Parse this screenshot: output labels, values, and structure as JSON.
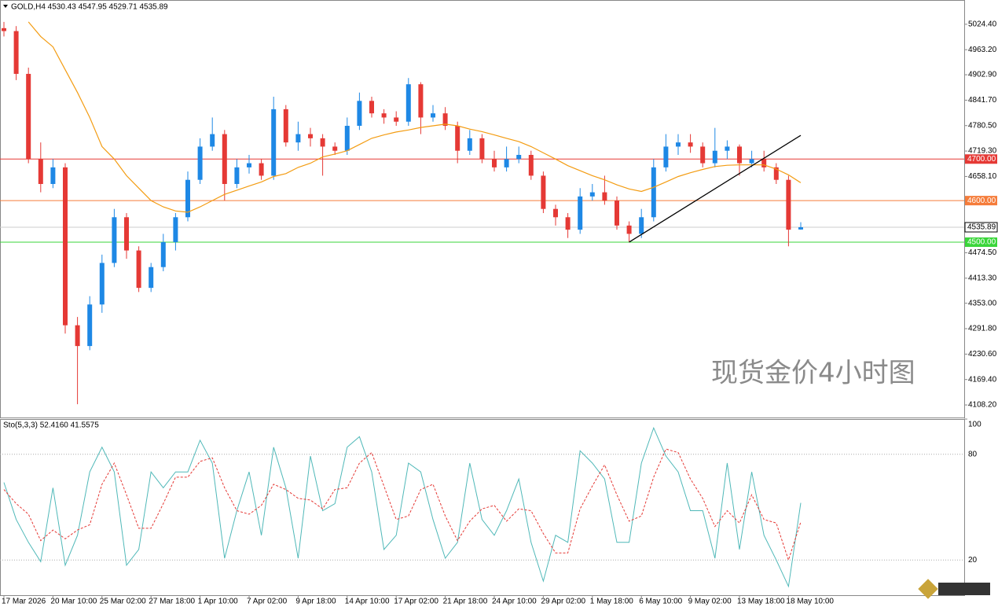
{
  "chart_data": {
    "type": "candlestick",
    "title": "GOLD,H4  4530.43 4547.95 4529.71 4535.89",
    "watermark": "现货金价4小时图",
    "categories": [
      "17 Mar 2026",
      null,
      null,
      null,
      "20 Mar 10:00",
      null,
      null,
      null,
      "25 Mar 02:00",
      null,
      null,
      null,
      "27 Mar 18:00",
      null,
      null,
      null,
      "1 Apr 10:00",
      null,
      null,
      null,
      "7 Apr 02:00",
      null,
      null,
      null,
      "9 Apr 18:00",
      null,
      null,
      null,
      "14 Apr 10:00",
      null,
      null,
      null,
      "17 Apr 02:00",
      null,
      null,
      null,
      "21 Apr 18:00",
      null,
      null,
      null,
      "24 Apr 10:00",
      null,
      null,
      null,
      "29 Apr 02:00",
      null,
      null,
      null,
      "1 May 18:00",
      null,
      null,
      null,
      "6 May 10:00",
      null,
      null,
      null,
      "9 May 02:00",
      null,
      null,
      null,
      "13 May 18:00",
      null,
      null,
      null,
      "18 May 10:00",
      null
    ],
    "open": [
      5015,
      5008,
      4905,
      4700,
      4640,
      4680,
      4300,
      4250,
      4350,
      4450,
      4560,
      4480,
      4390,
      4440,
      4500,
      4560,
      4650,
      4730,
      4760,
      4640,
      4680,
      4690,
      4660,
      4820,
      4740,
      4760,
      4750,
      4730,
      4720,
      4780,
      4840,
      4810,
      4800,
      4790,
      4880,
      4800,
      4810,
      4780,
      4720,
      4750,
      4700,
      4680,
      4700,
      4710,
      4660,
      4580,
      4560,
      4530,
      4610,
      4620,
      4600,
      4540,
      4520,
      4560,
      4680,
      4730,
      4740,
      4730,
      4690,
      4720,
      4730,
      4690,
      4700,
      4680,
      4650,
      4530.43
    ],
    "high": [
      5030,
      5020,
      4920,
      4740,
      4700,
      4690,
      4320,
      4370,
      4470,
      4580,
      4570,
      4490,
      4450,
      4520,
      4570,
      4670,
      4750,
      4800,
      4770,
      4700,
      4710,
      4700,
      4850,
      4830,
      4790,
      4775,
      4760,
      4740,
      4800,
      4860,
      4850,
      4820,
      4815,
      4895,
      4885,
      4830,
      4825,
      4790,
      4770,
      4760,
      4720,
      4730,
      4730,
      4720,
      4670,
      4590,
      4570,
      4630,
      4640,
      4660,
      4610,
      4550,
      4580,
      4700,
      4760,
      4760,
      4760,
      4740,
      4775,
      4745,
      4735,
      4720,
      4720,
      4690,
      4660,
      4547.95
    ],
    "low": [
      4995,
      4890,
      4690,
      4620,
      4630,
      4280,
      4110,
      4240,
      4330,
      4440,
      4460,
      4380,
      4380,
      4430,
      4480,
      4550,
      4640,
      4720,
      4600,
      4630,
      4665,
      4650,
      4650,
      4730,
      4720,
      4730,
      4660,
      4710,
      4710,
      4770,
      4800,
      4785,
      4780,
      4780,
      4760,
      4790,
      4770,
      4690,
      4710,
      4690,
      4670,
      4670,
      4690,
      4650,
      4570,
      4540,
      4510,
      4520,
      4600,
      4590,
      4530,
      4500,
      4510,
      4550,
      4670,
      4710,
      4715,
      4680,
      4680,
      4700,
      4660,
      4680,
      4670,
      4640,
      4490,
      4529.71
    ],
    "close": [
      5008,
      4905,
      4700,
      4640,
      4680,
      4300,
      4250,
      4350,
      4450,
      4560,
      4480,
      4390,
      4440,
      4500,
      4560,
      4650,
      4730,
      4760,
      4640,
      4680,
      4690,
      4660,
      4820,
      4740,
      4760,
      4750,
      4730,
      4720,
      4780,
      4840,
      4810,
      4800,
      4790,
      4880,
      4800,
      4810,
      4780,
      4720,
      4750,
      4700,
      4680,
      4700,
      4710,
      4660,
      4580,
      4560,
      4530,
      4610,
      4620,
      4600,
      4540,
      4520,
      4560,
      4680,
      4730,
      4740,
      4730,
      4690,
      4720,
      4730,
      4690,
      4700,
      4680,
      4650,
      4530,
      4535.89
    ],
    "up_color": "#1e88e5",
    "down_color": "#e53935",
    "ma": {
      "color": "#f39c12",
      "values": [
        null,
        null,
        5030,
        4995,
        4970,
        4915,
        4860,
        4800,
        4730,
        4700,
        4660,
        4630,
        4600,
        4585,
        4575,
        4572,
        4585,
        4600,
        4615,
        4625,
        4635,
        4645,
        4658,
        4665,
        4680,
        4690,
        4705,
        4712,
        4720,
        4735,
        4750,
        4758,
        4765,
        4770,
        4776,
        4780,
        4784,
        4780,
        4772,
        4766,
        4758,
        4750,
        4742,
        4730,
        4715,
        4700,
        4684,
        4672,
        4660,
        4650,
        4638,
        4628,
        4622,
        4632,
        4645,
        4658,
        4667,
        4675,
        4682,
        4685,
        4686,
        4686,
        4686,
        4676,
        4662,
        4643
      ]
    },
    "ylim": [
      4078,
      5079
    ],
    "yticks": [
      {
        "value": 4108.2,
        "label": "4108.20"
      },
      {
        "value": 4169.4,
        "label": "4169.40"
      },
      {
        "value": 4230.6,
        "label": "4230.60"
      },
      {
        "value": 4291.8,
        "label": "4291.80"
      },
      {
        "value": 4353,
        "label": "4353.00"
      },
      {
        "value": 4413.3,
        "label": "4413.30"
      },
      {
        "value": 4474.5,
        "label": "4474.50"
      },
      {
        "value": 4658.1,
        "label": "4658.10"
      },
      {
        "value": 4719.3,
        "label": "4719.30"
      },
      {
        "value": 4780.5,
        "label": "4780.50"
      },
      {
        "value": 4841.7,
        "label": "4841.70"
      },
      {
        "value": 4902.9,
        "label": "4902.90"
      },
      {
        "value": 4963.2,
        "label": "4963.20"
      },
      {
        "value": 5024.4,
        "label": "5024.40"
      }
    ],
    "levels": [
      {
        "value": 4700,
        "label": "4700.00",
        "color": "#e53935"
      },
      {
        "value": 4600,
        "label": "4600.00",
        "color": "#f57c3a"
      },
      {
        "value": 4500,
        "label": "4500.00",
        "color": "#3ad63a"
      }
    ],
    "current_price": {
      "value": 4535.89,
      "label": "4535.89"
    },
    "trendline": {
      "x": [
        51,
        65
      ],
      "y": [
        4500,
        4757
      ]
    },
    "indicator": {
      "label": "Sto(5,3,3) 52.4160 41.5575",
      "ylim": [
        0,
        100
      ],
      "yticks": [
        20,
        80,
        100
      ],
      "series": [
        {
          "color": "#4fb8b8",
          "values": [
            64,
            43,
            30,
            19,
            61,
            17,
            34,
            70,
            84,
            70,
            17,
            26,
            70,
            61,
            70,
            70,
            88,
            75,
            21,
            48,
            70,
            34,
            84,
            61,
            21,
            79,
            48,
            52,
            84,
            90,
            70,
            26,
            34,
            75,
            70,
            43,
            21,
            30,
            75,
            43,
            34,
            48,
            66,
            30,
            8,
            34,
            30,
            82,
            75,
            66,
            30,
            30,
            75,
            95,
            79,
            70,
            48,
            48,
            21,
            75,
            26,
            70,
            34,
            20,
            5,
            52.416
          ]
        },
        {
          "color": "#e53935",
          "dashed": true,
          "values": [
            60,
            52,
            46,
            31,
            37,
            32,
            37,
            40,
            63,
            75,
            57,
            38,
            38,
            52,
            67,
            67,
            76,
            78,
            61,
            48,
            46,
            51,
            63,
            60,
            55,
            54,
            49,
            60,
            61,
            75,
            81,
            62,
            43,
            45,
            60,
            63,
            45,
            31,
            42,
            49,
            51,
            42,
            49,
            48,
            35,
            24,
            24,
            49,
            62,
            74,
            57,
            42,
            45,
            67,
            83,
            81,
            66,
            55,
            39,
            48,
            41,
            57,
            43,
            41,
            20,
            41.5575
          ]
        }
      ]
    }
  }
}
